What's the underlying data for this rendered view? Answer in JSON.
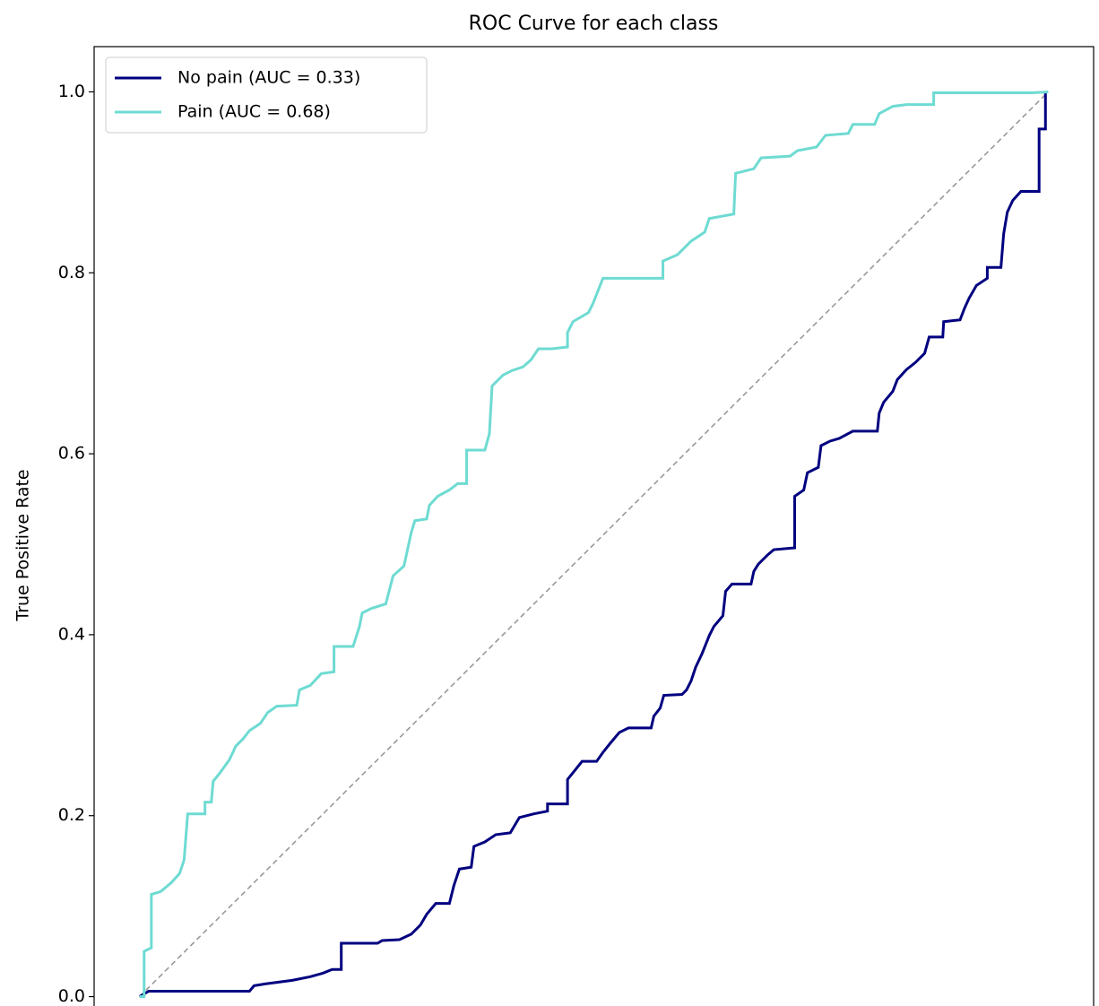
{
  "chart_data": {
    "type": "line",
    "title": "ROC Curve for each class",
    "y_label": "True Positive Rate",
    "xlim": [
      -0.05,
      1.05
    ],
    "ylim": [
      -0.05,
      1.05
    ],
    "yticks": [
      {
        "value": 0,
        "label": "0.0"
      },
      0.2,
      0.4,
      0.6,
      0.8,
      {
        "value": 1,
        "label": "1.0"
      }
    ],
    "legend": "upper left",
    "reference_line": {
      "x": [
        0,
        1
      ],
      "y": [
        0,
        1
      ],
      "color": "#999999"
    },
    "series": [
      {
        "name": "No pain (AUC = 0.33)",
        "color": "#000080",
        "x": [
          0,
          0.01,
          0.121,
          0.126,
          0.138,
          0.168,
          0.188,
          0.202,
          0.212,
          0.222,
          0.222,
          0.262,
          0.267,
          0.286,
          0.299,
          0.309,
          0.316,
          0.326,
          0.341,
          0.346,
          0.352,
          0.365,
          0.368,
          0.38,
          0.392,
          0.408,
          0.418,
          0.434,
          0.449,
          0.449,
          0.471,
          0.471,
          0.479,
          0.487,
          0.503,
          0.51,
          0.518,
          0.528,
          0.538,
          0.563,
          0.566,
          0.573,
          0.577,
          0.597,
          0.602,
          0.607,
          0.612,
          0.619,
          0.627,
          0.632,
          0.642,
          0.645,
          0.652,
          0.673,
          0.676,
          0.681,
          0.691,
          0.698,
          0.721,
          0.721,
          0.731,
          0.735,
          0.747,
          0.75,
          0.76,
          0.77,
          0.785,
          0.812,
          0.814,
          0.819,
          0.829,
          0.834,
          0.844,
          0.854,
          0.864,
          0.869,
          0.884,
          0.885,
          0.903,
          0.908,
          0.913,
          0.921,
          0.933,
          0.933,
          0.948,
          0.951,
          0.955,
          0.961,
          0.97,
          0.99,
          0.99,
          0.997,
          0.997
        ],
        "y": [
          0,
          0.006,
          0.006,
          0.012,
          0.014,
          0.018,
          0.022,
          0.026,
          0.03,
          0.03,
          0.059,
          0.059,
          0.062,
          0.063,
          0.069,
          0.079,
          0.091,
          0.103,
          0.103,
          0.123,
          0.141,
          0.143,
          0.166,
          0.171,
          0.179,
          0.181,
          0.198,
          0.202,
          0.205,
          0.213,
          0.213,
          0.24,
          0.25,
          0.26,
          0.26,
          0.27,
          0.28,
          0.292,
          0.297,
          0.297,
          0.31,
          0.319,
          0.333,
          0.334,
          0.339,
          0.349,
          0.364,
          0.379,
          0.399,
          0.409,
          0.421,
          0.448,
          0.456,
          0.456,
          0.47,
          0.478,
          0.488,
          0.494,
          0.496,
          0.553,
          0.56,
          0.579,
          0.585,
          0.609,
          0.614,
          0.617,
          0.625,
          0.625,
          0.645,
          0.657,
          0.669,
          0.682,
          0.693,
          0.701,
          0.711,
          0.729,
          0.729,
          0.746,
          0.748,
          0.761,
          0.772,
          0.786,
          0.794,
          0.806,
          0.806,
          0.843,
          0.867,
          0.88,
          0.89,
          0.89,
          0.959,
          0.959,
          1
        ]
      },
      {
        "name": "Pain (AUC = 0.68)",
        "color": "#6edbd2",
        "x": [
          0,
          0.005,
          0.005,
          0.013,
          0.013,
          0.023,
          0.035,
          0.044,
          0.049,
          0.053,
          0.072,
          0.072,
          0.079,
          0.081,
          0.089,
          0.099,
          0.106,
          0.114,
          0.121,
          0.133,
          0.141,
          0.151,
          0.173,
          0.176,
          0.188,
          0.2,
          0.214,
          0.214,
          0.235,
          0.242,
          0.245,
          0.255,
          0.271,
          0.279,
          0.291,
          0.299,
          0.303,
          0.316,
          0.319,
          0.328,
          0.341,
          0.35,
          0.36,
          0.36,
          0.38,
          0.385,
          0.388,
          0.4,
          0.41,
          0.422,
          0.431,
          0.439,
          0.454,
          0.471,
          0.471,
          0.477,
          0.494,
          0.499,
          0.51,
          0.526,
          0.576,
          0.576,
          0.592,
          0.607,
          0.622,
          0.627,
          0.654,
          0.656,
          0.676,
          0.684,
          0.716,
          0.724,
          0.745,
          0.755,
          0.78,
          0.785,
          0.809,
          0.814,
          0.829,
          0.844,
          0.874,
          0.874,
          0.982,
          1
        ],
        "y": [
          0,
          0,
          0.05,
          0.054,
          0.113,
          0.116,
          0.126,
          0.136,
          0.151,
          0.202,
          0.202,
          0.215,
          0.215,
          0.238,
          0.248,
          0.262,
          0.277,
          0.285,
          0.294,
          0.302,
          0.314,
          0.321,
          0.322,
          0.339,
          0.344,
          0.357,
          0.359,
          0.387,
          0.387,
          0.409,
          0.424,
          0.429,
          0.434,
          0.465,
          0.476,
          0.513,
          0.526,
          0.528,
          0.543,
          0.553,
          0.56,
          0.567,
          0.567,
          0.604,
          0.604,
          0.622,
          0.675,
          0.687,
          0.692,
          0.696,
          0.704,
          0.716,
          0.716,
          0.718,
          0.734,
          0.746,
          0.756,
          0.766,
          0.794,
          0.794,
          0.794,
          0.813,
          0.82,
          0.835,
          0.845,
          0.86,
          0.865,
          0.91,
          0.915,
          0.927,
          0.929,
          0.935,
          0.939,
          0.952,
          0.954,
          0.964,
          0.964,
          0.976,
          0.984,
          0.986,
          0.986,
          0.999,
          0.999,
          1
        ]
      }
    ]
  }
}
